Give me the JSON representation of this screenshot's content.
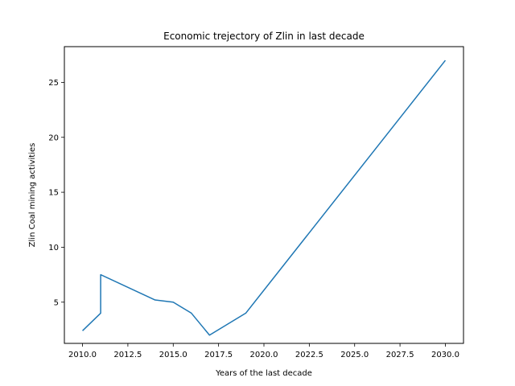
{
  "chart_data": {
    "type": "line",
    "title": "Economic trejectory of Zlin in last decade",
    "xlabel": "Years of the last decade",
    "ylabel": "Zlin Coal mining activities",
    "xlim": [
      2009.0,
      2031.0
    ],
    "ylim": [
      1.25,
      28.25
    ],
    "xticks": [
      2010.0,
      2012.5,
      2015.0,
      2017.5,
      2020.0,
      2022.5,
      2025.0,
      2027.5,
      2030.0
    ],
    "xtick_labels": [
      "2010.0",
      "2012.5",
      "2015.0",
      "2017.5",
      "2020.0",
      "2022.5",
      "2025.0",
      "2027.5",
      "2030.0"
    ],
    "yticks": [
      5,
      10,
      15,
      20,
      25
    ],
    "ytick_labels": [
      "5",
      "10",
      "15",
      "20",
      "25"
    ],
    "grid": false,
    "series": [
      {
        "color": "#1f77b4",
        "x": [
          2010,
          2011,
          2011,
          2014,
          2015,
          2016,
          2017,
          2019,
          2030
        ],
        "y": [
          2.4,
          4.0,
          7.5,
          5.2,
          5.0,
          4.0,
          2.0,
          4.0,
          27.0
        ]
      }
    ]
  }
}
